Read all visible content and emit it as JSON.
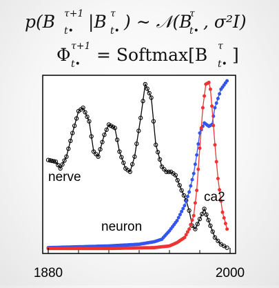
{
  "equations": {
    "eq1": {
      "lhs": "p(B",
      "lhs_sup": "τ+1",
      "lhs_sub": "t•",
      "bar": "|B",
      "bar_sup": "τ",
      "bar_sub": "t•",
      "rel": ") ∼ 𝒩(B",
      "n_sup": "τ",
      "n_sub": "t•",
      "tail": ", σ²I)"
    },
    "eq2": {
      "phi": "Φ",
      "phi_sup": "τ+1",
      "phi_sub": "t•",
      "eq": "= Softmax[B",
      "sm_sup": "τ",
      "sm_sub": "t•",
      "close": "]"
    }
  },
  "chart_data": {
    "type": "line",
    "xlim": [
      1880,
      2000
    ],
    "ylim": [
      0,
      1
    ],
    "xticks": [
      1880,
      2000
    ],
    "xtick_labels": [
      "1880",
      "2000"
    ],
    "series": [
      {
        "name": "nerve",
        "color": "#000000",
        "x": [
          1880,
          1885,
          1888,
          1892,
          1896,
          1900,
          1903,
          1907,
          1910,
          1913,
          1917,
          1920,
          1924,
          1927,
          1931,
          1934,
          1937,
          1941,
          1944,
          1948,
          1951,
          1955,
          1958,
          1961,
          1964,
          1968,
          1971,
          1973,
          1975,
          1977,
          1980,
          1983,
          1987,
          1990,
          1992,
          1994,
          1996,
          1998
        ],
        "y": [
          0.53,
          0.52,
          0.48,
          0.55,
          0.69,
          0.82,
          0.84,
          0.76,
          0.58,
          0.55,
          0.68,
          0.74,
          0.72,
          0.58,
          0.48,
          0.46,
          0.55,
          0.78,
          0.98,
          0.9,
          0.62,
          0.49,
          0.46,
          0.46,
          0.44,
          0.35,
          0.29,
          0.23,
          0.14,
          0.12,
          0.18,
          0.24,
          0.14,
          0.07,
          0.05,
          0.03,
          0.02,
          0.01
        ]
      },
      {
        "name": "neuron",
        "color": "#3355ee",
        "x": [
          1880,
          1900,
          1920,
          1930,
          1940,
          1950,
          1955,
          1960,
          1965,
          1970,
          1973,
          1976,
          1978,
          1980,
          1983,
          1986,
          1988,
          1990,
          1994,
          1998
        ],
        "y": [
          0.01,
          0.015,
          0.02,
          0.025,
          0.03,
          0.045,
          0.06,
          0.11,
          0.17,
          0.26,
          0.34,
          0.45,
          0.56,
          0.69,
          0.75,
          0.73,
          0.74,
          0.84,
          0.95,
          1.0
        ]
      },
      {
        "name": "ca2",
        "color": "#ee3333",
        "x": [
          1880,
          1920,
          1950,
          1960,
          1965,
          1970,
          1973,
          1976,
          1978,
          1980,
          1982,
          1984,
          1986,
          1987,
          1988,
          1990,
          1992,
          1995,
          1998
        ],
        "y": [
          0.005,
          0.005,
          0.01,
          0.02,
          0.04,
          0.07,
          0.12,
          0.2,
          0.35,
          0.6,
          0.84,
          0.98,
          0.99,
          0.95,
          0.85,
          0.62,
          0.42,
          0.22,
          0.12
        ]
      }
    ]
  }
}
